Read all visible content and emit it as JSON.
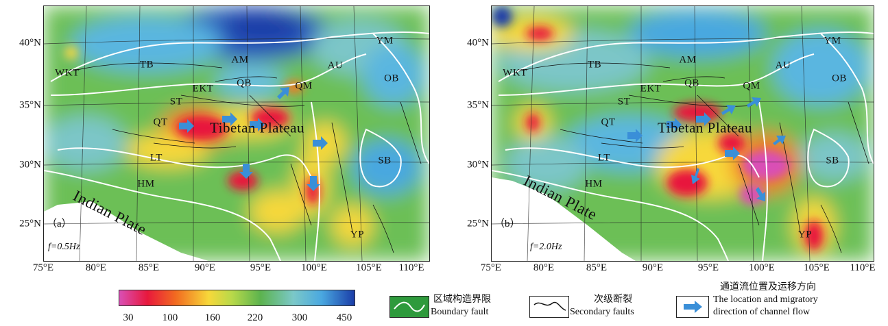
{
  "panels": [
    {
      "id": "a",
      "panel_label": "（a）",
      "frequency_label": "f=0.5Hz",
      "regions": {
        "WKT": "WKT",
        "TB": "TB",
        "AM": "AM",
        "AU": "AU",
        "YM": "YM",
        "OB": "OB",
        "EKT": "EKT",
        "QB": "QB",
        "QM": "QM",
        "ST": "ST",
        "QT": "QT",
        "LT": "LT",
        "HM": "HM",
        "SB": "SB",
        "YP": "YP"
      },
      "tibetan_plateau": "Tibetan Plateau",
      "indian_plate": "Indian Plate"
    },
    {
      "id": "b",
      "panel_label": "（b）",
      "frequency_label": "f=2.0Hz",
      "regions": {
        "WKT": "WKT",
        "TB": "TB",
        "AM": "AM",
        "AU": "AU",
        "YM": "YM",
        "OB": "OB",
        "EKT": "EKT",
        "QB": "QB",
        "QM": "QM",
        "ST": "ST",
        "QT": "QT",
        "LT": "LT",
        "HM": "HM",
        "SB": "SB",
        "YP": "YP"
      },
      "tibetan_plateau": "Tibetan Plateau",
      "indian_plate": "Indian Plate"
    }
  ],
  "latitude_labels": [
    "40°N",
    "35°N",
    "30°N",
    "25°N"
  ],
  "longitude_labels": [
    "75°E",
    "80°E",
    "85°E",
    "90°E",
    "95°E",
    "100°E",
    "105°E",
    "110°E"
  ],
  "colorbar": {
    "ticks": [
      "30",
      "100",
      "160",
      "220",
      "300",
      "450"
    ],
    "colors": [
      "#d94fb5",
      "#e8183c",
      "#f26b20",
      "#f7d83a",
      "#b7d94a",
      "#5cb34e",
      "#7bc8c8",
      "#4aa8e0",
      "#1a3da8"
    ]
  },
  "legend": {
    "boundary_cn": "区域构造界限",
    "boundary_en": "Boundary fault",
    "secondary_cn": "次级断裂",
    "secondary_en": "Secondary faults",
    "channel_cn": "通道流位置及运移方向",
    "channel_en_1": "The location and migratory",
    "channel_en_2": "direction of channel flow"
  },
  "colors": {
    "boundary_fault_box": "#2e9a3c",
    "channel_arrow": "#3a8fd8",
    "background_green": "#5cb34e"
  },
  "icons": [
    "boundary-fault-line-icon",
    "secondary-fault-line-icon",
    "channel-flow-arrow-icon"
  ]
}
